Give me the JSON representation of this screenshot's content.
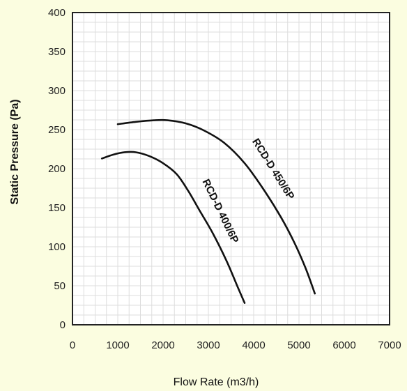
{
  "chart_data": {
    "type": "line",
    "xlabel": "Flow Rate (m3/h)",
    "ylabel": "Static Pressure (Pa)",
    "xlim": [
      0,
      7000
    ],
    "ylim": [
      0,
      400
    ],
    "x_ticks": [
      0,
      1000,
      2000,
      3000,
      4000,
      5000,
      6000,
      7000
    ],
    "y_ticks": [
      0,
      50,
      100,
      150,
      200,
      250,
      300,
      350,
      400
    ],
    "grid": true,
    "series": [
      {
        "name": "RCD-D 400/6P",
        "x": [
          650,
          900,
          1150,
          1400,
          1700,
          2000,
          2300,
          2550,
          2800,
          3100,
          3400,
          3650,
          3800
        ],
        "y": [
          213,
          218,
          221,
          221,
          216,
          207,
          193,
          172,
          147,
          117,
          82,
          48,
          28
        ]
      },
      {
        "name": "RCD-D 450/6P",
        "x": [
          1000,
          1400,
          1800,
          2100,
          2500,
          2900,
          3350,
          3800,
          4200,
          4600,
          4900,
          5150,
          5350
        ],
        "y": [
          257,
          260,
          262,
          262,
          258,
          249,
          233,
          207,
          175,
          138,
          105,
          72,
          40
        ]
      }
    ]
  }
}
